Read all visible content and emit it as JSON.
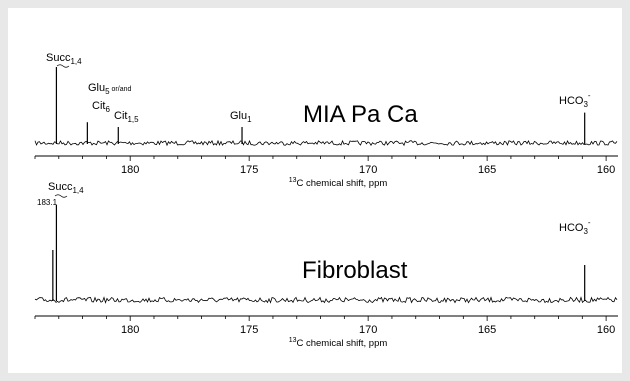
{
  "chart_data": [
    {
      "type": "line",
      "panel": "MIA Pa Ca",
      "xlabel_sup": "13",
      "xlabel_main": "C chemical shift, ppm",
      "xlim": [
        184,
        159.5
      ],
      "x_reversed": true,
      "xticks": [
        180,
        175,
        170,
        165,
        160
      ],
      "peaks": [
        {
          "x": 183.1,
          "height": 0.95
        },
        {
          "x": 181.8,
          "height": 0.26
        },
        {
          "x": 180.5,
          "height": 0.2
        },
        {
          "x": 175.3,
          "height": 0.2
        },
        {
          "x": 160.9,
          "height": 0.38
        }
      ],
      "labels": {
        "succ": {
          "main": "Succ",
          "sub": "1,4"
        },
        "glu5": {
          "main": "Glu",
          "sub": "5",
          "suffix": " or/and"
        },
        "cit6": {
          "main": "Cit",
          "sub": "6"
        },
        "cit15": {
          "main": "Cit",
          "sub": "1,5"
        },
        "glu1": {
          "main": "Glu",
          "sub": "1"
        },
        "hco3": {
          "main": "HCO",
          "sub": "3",
          "sup": "-"
        }
      }
    },
    {
      "type": "line",
      "panel": "Fibroblast",
      "xlabel_sup": "13",
      "xlabel_main": "C chemical shift, ppm",
      "xlim": [
        184,
        159.5
      ],
      "x_reversed": true,
      "xticks": [
        180,
        175,
        170,
        165,
        160
      ],
      "peaks": [
        {
          "x": 183.25,
          "height": 0.5
        },
        {
          "x": 183.1,
          "height": 0.95
        },
        {
          "x": 160.9,
          "height": 0.35
        }
      ],
      "labels": {
        "succ": {
          "main": "Succ",
          "sub": "1,4"
        },
        "ref": "183.1",
        "hco3": {
          "main": "HCO",
          "sub": "3",
          "sup": "-"
        }
      }
    }
  ]
}
